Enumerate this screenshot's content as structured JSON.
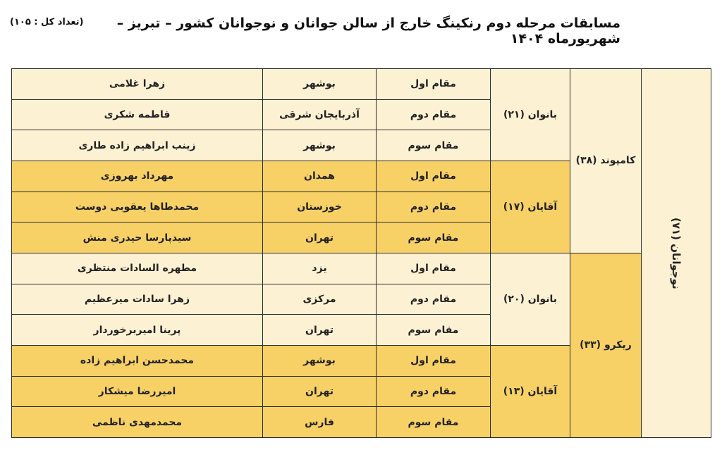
{
  "header": {
    "title": "مسابقات مرحله دوم رنکینگ خارج از سالن جوانان و نوجوانان کشور  – تبریز – شهریورماه ۱۴۰۴",
    "total": "(تعداد کل : ۱۰۵)"
  },
  "colors": {
    "light": "#fdf1d3",
    "gold": "#f8d166"
  },
  "table": {
    "age_group": "نوجوانان (۷۱)",
    "bows": [
      {
        "label": "کامپوند (۳۸)",
        "groups": [
          {
            "label": "بانوان (۲۱)",
            "rows": [
              {
                "rank": "مقام اول",
                "province": "بوشهر",
                "name": "زهرا غلامی"
              },
              {
                "rank": "مقام دوم",
                "province": "آذربایجان شرقی",
                "name": "فاطمه شکری"
              },
              {
                "rank": "مقام سوم",
                "province": "بوشهر",
                "name": "زینب ابراهیم زاده طاری"
              }
            ]
          },
          {
            "label": "آقایان (۱۷)",
            "rows": [
              {
                "rank": "مقام اول",
                "province": "همدان",
                "name": "مهرداد بهروزی"
              },
              {
                "rank": "مقام دوم",
                "province": "خوزستان",
                "name": "محمدطاها یعقوبی دوست"
              },
              {
                "rank": "مقام سوم",
                "province": "تهران",
                "name": "سیدپارسا حیدری منش"
              }
            ]
          }
        ]
      },
      {
        "label": "ریکرو (۳۳)",
        "groups": [
          {
            "label": "بانوان (۲۰)",
            "rows": [
              {
                "rank": "مقام اول",
                "province": "یزد",
                "name": "مطهره السادات منتظری"
              },
              {
                "rank": "مقام دوم",
                "province": "مرکزی",
                "name": "زهرا سادات میرعظیم"
              },
              {
                "rank": "مقام سوم",
                "province": "تهران",
                "name": "پرینا امیربرخوردار"
              }
            ]
          },
          {
            "label": "آقایان (۱۳)",
            "rows": [
              {
                "rank": "مقام اول",
                "province": "بوشهر",
                "name": "محمدحسن ابراهیم زاده"
              },
              {
                "rank": "مقام دوم",
                "province": "تهران",
                "name": "امیررضا میشکار"
              },
              {
                "rank": "مقام سوم",
                "province": "فارس",
                "name": "محمدمهدی ناظمی"
              }
            ]
          }
        ]
      }
    ]
  }
}
